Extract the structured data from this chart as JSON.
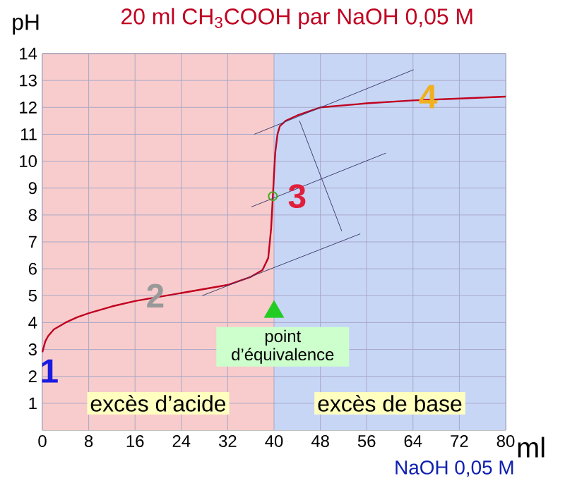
{
  "chart_data": {
    "type": "line",
    "title": "20 ml CH$_{3}$COOH par NaOH 0,05 M",
    "xlabel": "ml",
    "ylabel": "pH",
    "xlim": [
      0,
      80
    ],
    "ylim": [
      0,
      14
    ],
    "xticks": [
      0,
      8,
      16,
      24,
      32,
      40,
      48,
      56,
      64,
      72,
      80
    ],
    "yticks": [
      1,
      2,
      3,
      4,
      5,
      6,
      7,
      8,
      9,
      10,
      11,
      12,
      13,
      14
    ],
    "grid": true,
    "series": [
      {
        "color": "#c00020",
        "x": [
          0,
          0.5,
          1,
          2,
          4,
          6,
          8,
          12,
          16,
          20,
          24,
          28,
          32,
          36,
          38,
          39,
          39.5,
          39.8,
          40.2,
          40.6,
          41,
          42,
          44,
          48,
          56,
          64,
          72,
          80
        ],
        "values": [
          2.9,
          3.3,
          3.5,
          3.75,
          4.0,
          4.2,
          4.35,
          4.6,
          4.8,
          4.95,
          5.1,
          5.25,
          5.4,
          5.7,
          5.95,
          6.4,
          7.5,
          8.7,
          10.3,
          11.0,
          11.3,
          11.5,
          11.7,
          12.0,
          12.15,
          12.26,
          12.33,
          12.4
        ]
      },
      {
        "color": "#404070",
        "x": [
          36.6,
          64.1
        ],
        "values": [
          11.0,
          13.4
        ]
      },
      {
        "color": "#404070",
        "x": [
          36.1,
          59.3
        ],
        "values": [
          8.3,
          10.3
        ]
      },
      {
        "color": "#404070",
        "x": [
          27.6,
          54.9
        ],
        "values": [
          5.0,
          7.3
        ]
      },
      {
        "color": "#404070",
        "x": [
          44.4,
          51.7
        ],
        "values": [
          11.5,
          7.4
        ]
      },
      {
        "type": "scatter",
        "color": "#44aa22",
        "marker": "circle",
        "x": [
          39.8
        ],
        "values": [
          8.7
        ]
      },
      {
        "type": "scatter",
        "color": "#22cc22",
        "marker": "triangle",
        "x": [
          40
        ],
        "values": [
          4.4
        ]
      }
    ],
    "bands": [
      {
        "axis": "x",
        "from": 0,
        "to": 40,
        "label": "excès d’acide",
        "color": "#f8cccc"
      },
      {
        "axis": "x",
        "from": 40,
        "to": 80,
        "label": "excès de base",
        "color": "#c8d6f6"
      }
    ],
    "annotations": [
      {
        "text": "1",
        "x": 1.2,
        "y": 2.2
      },
      {
        "text": "2",
        "x": 19.5,
        "y": 5.0
      },
      {
        "text": "3",
        "x": 44,
        "y": 8.7
      },
      {
        "text": "4",
        "x": 66.6,
        "y": 12.4
      },
      {
        "text": "point d’équivalence",
        "x": 40,
        "y": 3.1
      },
      "NaOH 0,05 M"
    ]
  }
}
